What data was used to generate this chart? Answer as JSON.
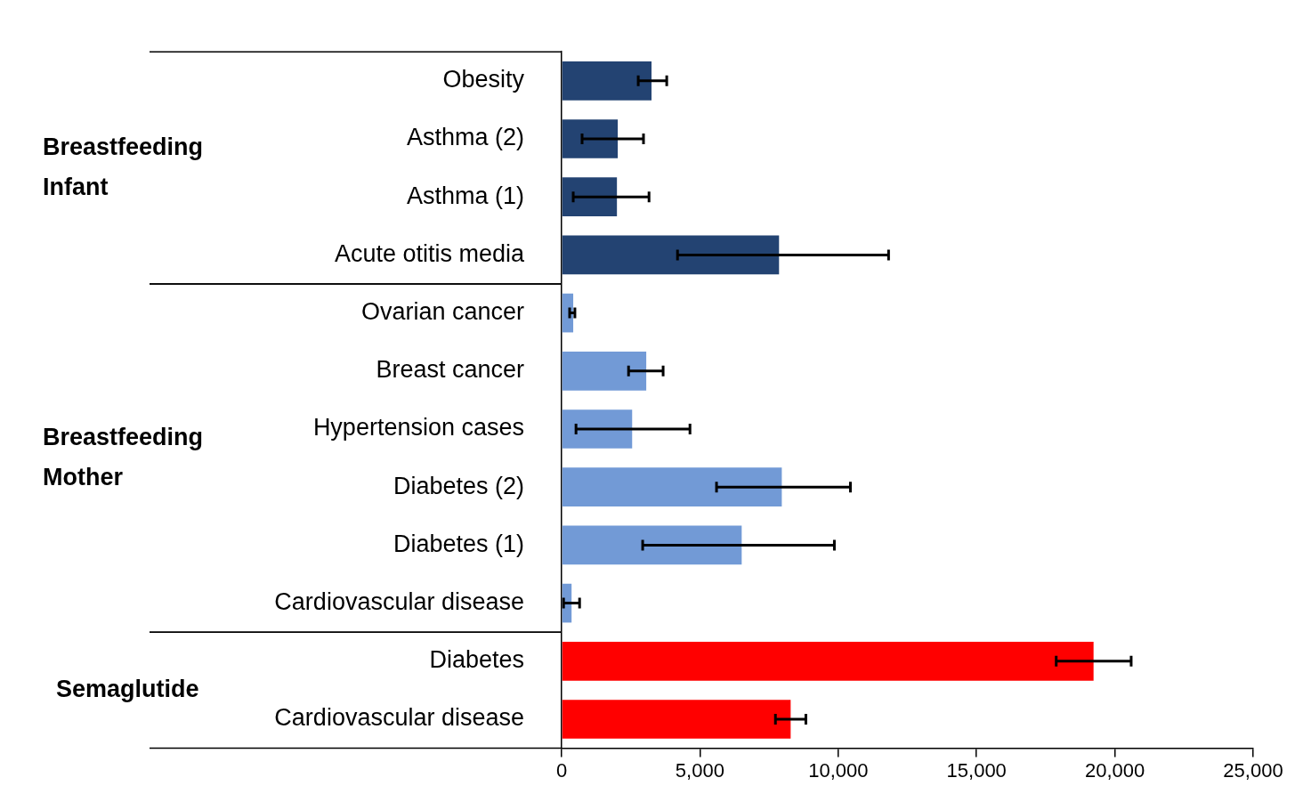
{
  "chart_data": {
    "type": "bar",
    "orientation": "horizontal",
    "categories": [
      "Obesity",
      "Asthma (2)",
      "Asthma (1)",
      "Acute otitis media",
      "Ovarian cancer",
      "Breast cancer",
      "Hypertension cases",
      "Diabetes (2)",
      "Diabetes (1)",
      "Cardiovascular disease",
      "Diabetes",
      "Cardiovascular disease"
    ],
    "values": [
      3250,
      2030,
      2000,
      7860,
      420,
      3060,
      2550,
      7960,
      6510,
      360,
      19230,
      8280
    ],
    "errors": [
      [
        2770,
        3800
      ],
      [
        740,
        2960
      ],
      [
        420,
        3160
      ],
      [
        4190,
        11820
      ],
      [
        290,
        480
      ],
      [
        2420,
        3670
      ],
      [
        520,
        4640
      ],
      [
        5600,
        10440
      ],
      [
        2930,
        9860
      ],
      [
        70,
        650
      ],
      [
        17880,
        20590
      ],
      [
        7730,
        8830
      ]
    ],
    "colors": [
      "#234372",
      "#234372",
      "#234372",
      "#234372",
      "#729ad6",
      "#729ad6",
      "#729ad6",
      "#729ad6",
      "#729ad6",
      "#729ad6",
      "#ff0000",
      "#ff0000"
    ],
    "xlim": [
      0,
      25000
    ],
    "xticks": [
      {
        "value": 0,
        "label": "0"
      },
      {
        "value": 5000,
        "label": "5,000"
      },
      {
        "value": 10000,
        "label": "10,000"
      },
      {
        "value": 15000,
        "label": "15,000"
      },
      {
        "value": 20000,
        "label": "20,000"
      },
      {
        "value": 25000,
        "label": "25,000"
      }
    ],
    "annotations": [
      "Breastfeeding\nInfant",
      "Breastfeeding\nMother",
      "Semaglutide"
    ],
    "grid": false,
    "legend": false
  }
}
